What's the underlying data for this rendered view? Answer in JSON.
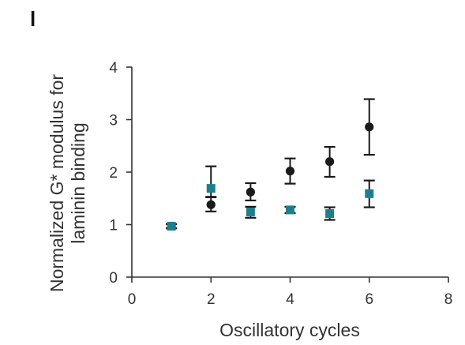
{
  "panel_label": "l",
  "chart_data": {
    "type": "scatter",
    "xlabel": "Oscillatory cycles",
    "ylabel_lines": [
      "Normalized G* modulus for",
      "laminin binding"
    ],
    "xlim": [
      0,
      8
    ],
    "ylim": [
      0,
      4
    ],
    "xticks": [
      0,
      2,
      4,
      6,
      8
    ],
    "yticks": [
      0,
      1,
      2,
      3,
      4
    ],
    "grid": false,
    "series": [
      {
        "marker": "circle",
        "color": "#1a1a1a",
        "points": [
          {
            "x": 1,
            "y": 0.97,
            "err_low": 0.04,
            "err_high": 0.04
          },
          {
            "x": 2,
            "y": 1.38,
            "err_low": 0.13,
            "err_high": 0.14
          },
          {
            "x": 3,
            "y": 1.62,
            "err_low": 0.16,
            "err_high": 0.17
          },
          {
            "x": 4,
            "y": 2.02,
            "err_low": 0.24,
            "err_high": 0.24
          },
          {
            "x": 5,
            "y": 2.2,
            "err_low": 0.29,
            "err_high": 0.28
          },
          {
            "x": 6,
            "y": 2.86,
            "err_low": 0.53,
            "err_high": 0.53
          }
        ]
      },
      {
        "marker": "square",
        "color": "#1d7f8d",
        "points": [
          {
            "x": 1,
            "y": 0.97,
            "err_low": 0.04,
            "err_high": 0.04
          },
          {
            "x": 2,
            "y": 1.69,
            "err_low": 0.16,
            "err_high": 0.42
          },
          {
            "x": 3,
            "y": 1.24,
            "err_low": 0.11,
            "err_high": 0.1
          },
          {
            "x": 4,
            "y": 1.28,
            "err_low": 0.06,
            "err_high": 0.06
          },
          {
            "x": 5,
            "y": 1.21,
            "err_low": 0.12,
            "err_high": 0.12
          },
          {
            "x": 6,
            "y": 1.59,
            "err_low": 0.26,
            "err_high": 0.25
          }
        ]
      }
    ]
  }
}
